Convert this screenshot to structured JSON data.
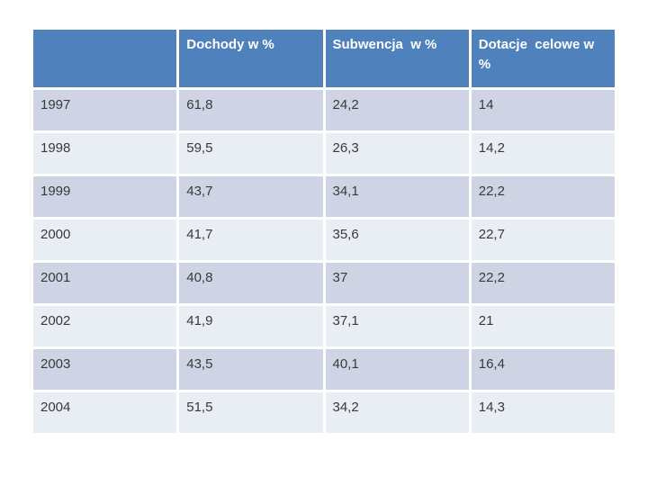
{
  "slide": {
    "background": "#ffffff"
  },
  "colors": {
    "header_bg": "#4f81bd",
    "header_text": "#ffffff",
    "row_dark_bg": "#ced4e3",
    "row_light_bg": "#e9edf4",
    "cell_text": "#3a3a3a",
    "grid_gap": "#ffffff"
  },
  "table": {
    "columns": [
      "",
      "Dochody w %",
      "Subwencja  w %",
      "Dotacje  celowe w %"
    ],
    "rows": [
      {
        "year": "1997",
        "dochody": "61,8",
        "subwencja": "24,2",
        "dotacje": "14"
      },
      {
        "year": "1998",
        "dochody": "59,5",
        "subwencja": "26,3",
        "dotacje": "14,2"
      },
      {
        "year": "1999",
        "dochody": "43,7",
        "subwencja": "34,1",
        "dotacje": "22,2"
      },
      {
        "year": "2000",
        "dochody": "41,7",
        "subwencja": "35,6",
        "dotacje": "22,7"
      },
      {
        "year": "2001",
        "dochody": "40,8",
        "subwencja": "37",
        "dotacje": "22,2"
      },
      {
        "year": "2002",
        "dochody": "41,9",
        "subwencja": "37,1",
        "dotacje": "21"
      },
      {
        "year": "2003",
        "dochody": "43,5",
        "subwencja": "40,1",
        "dotacje": "16,4"
      },
      {
        "year": "2004",
        "dochody": "51,5",
        "subwencja": "34,2",
        "dotacje": "14,3"
      }
    ]
  },
  "chart_data": {
    "type": "table",
    "title": "",
    "categories": [
      "1997",
      "1998",
      "1999",
      "2000",
      "2001",
      "2002",
      "2003",
      "2004"
    ],
    "series": [
      {
        "name": "Dochody w %",
        "values": [
          61.8,
          59.5,
          43.7,
          41.7,
          40.8,
          41.9,
          43.5,
          51.5
        ]
      },
      {
        "name": "Subwencja w %",
        "values": [
          24.2,
          26.3,
          34.1,
          35.6,
          37.0,
          37.1,
          40.1,
          34.2
        ]
      },
      {
        "name": "Dotacje celowe w %",
        "values": [
          14.0,
          14.2,
          22.2,
          22.7,
          22.2,
          21.0,
          16.4,
          14.3
        ]
      }
    ],
    "layout": {
      "header_fill": "#4f81bd",
      "banded_rows": true,
      "legend_position": "none",
      "grid": false
    }
  }
}
